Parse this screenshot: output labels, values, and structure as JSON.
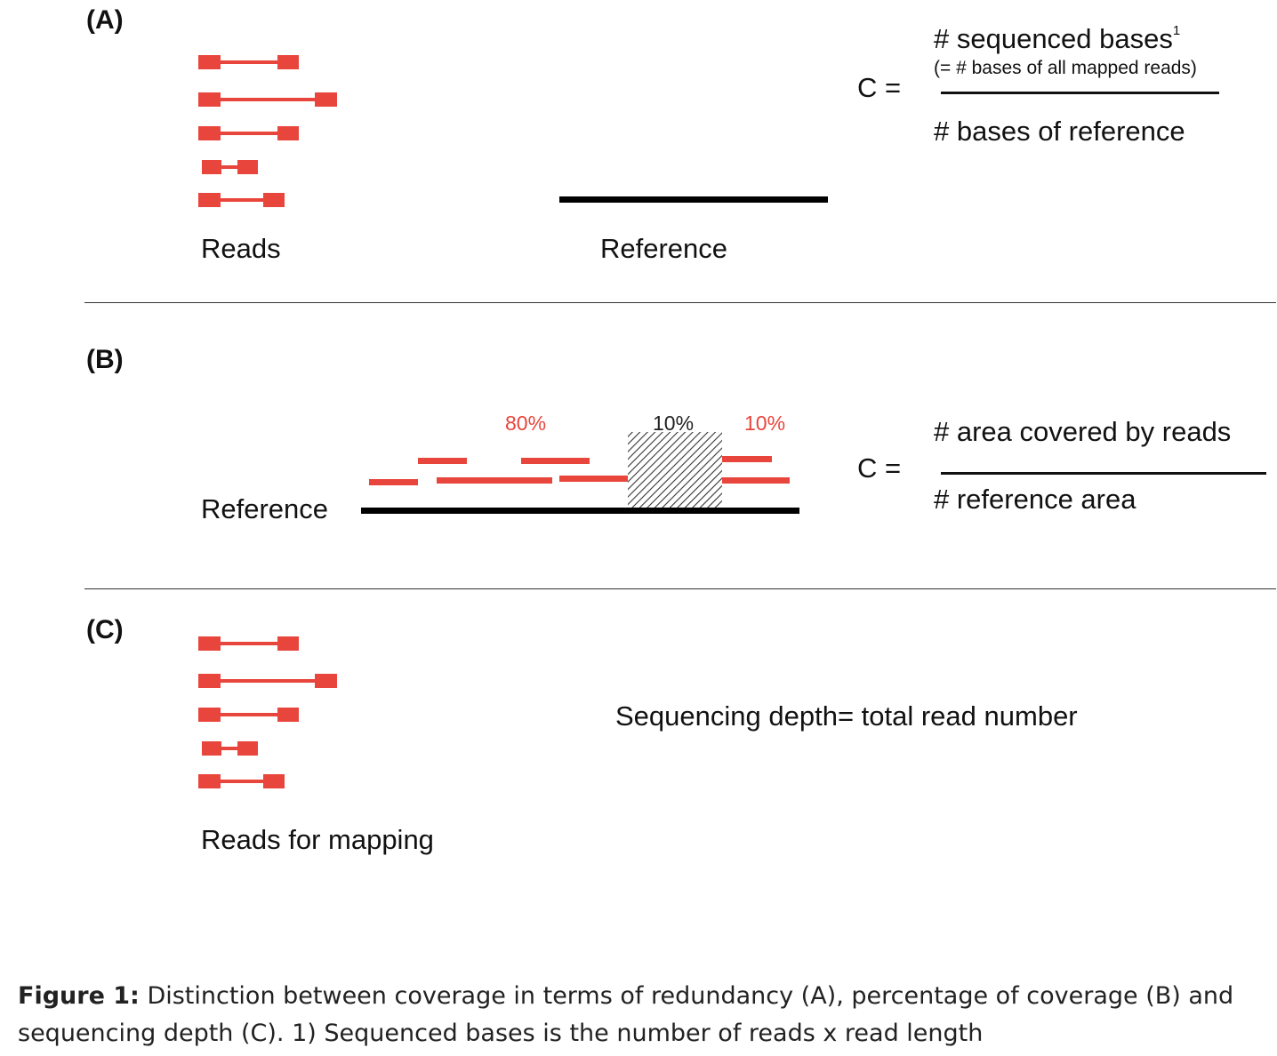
{
  "panelA": {
    "label": "(A)",
    "reads_label": "Reads",
    "reference_label": "Reference",
    "c_label": "C =",
    "numerator": "# sequenced bases",
    "numerator_sup": "1",
    "numerator_note": "(= # bases of all mapped reads)",
    "denominator": "# bases of reference"
  },
  "panelB": {
    "label": "(B)",
    "reference_label": "Reference",
    "pct_1": "80%",
    "pct_2": "10%",
    "pct_3": "10%",
    "c_label": "C =",
    "numerator": "# area covered by reads",
    "denominator": "# reference area"
  },
  "panelC": {
    "label": "(C)",
    "reads_label": "Reads for mapping",
    "depth_text": "Sequencing depth= total read number"
  },
  "caption": {
    "bold": "Figure 1:",
    "text": " Distinction between coverage in terms of redundancy (A), percentage of coverage (B) and sequencing depth (C). 1) Sequenced bases is the number of reads x read length"
  },
  "colors": {
    "read": "#e8453c",
    "reference": "#000000",
    "hatch": "#333333"
  }
}
